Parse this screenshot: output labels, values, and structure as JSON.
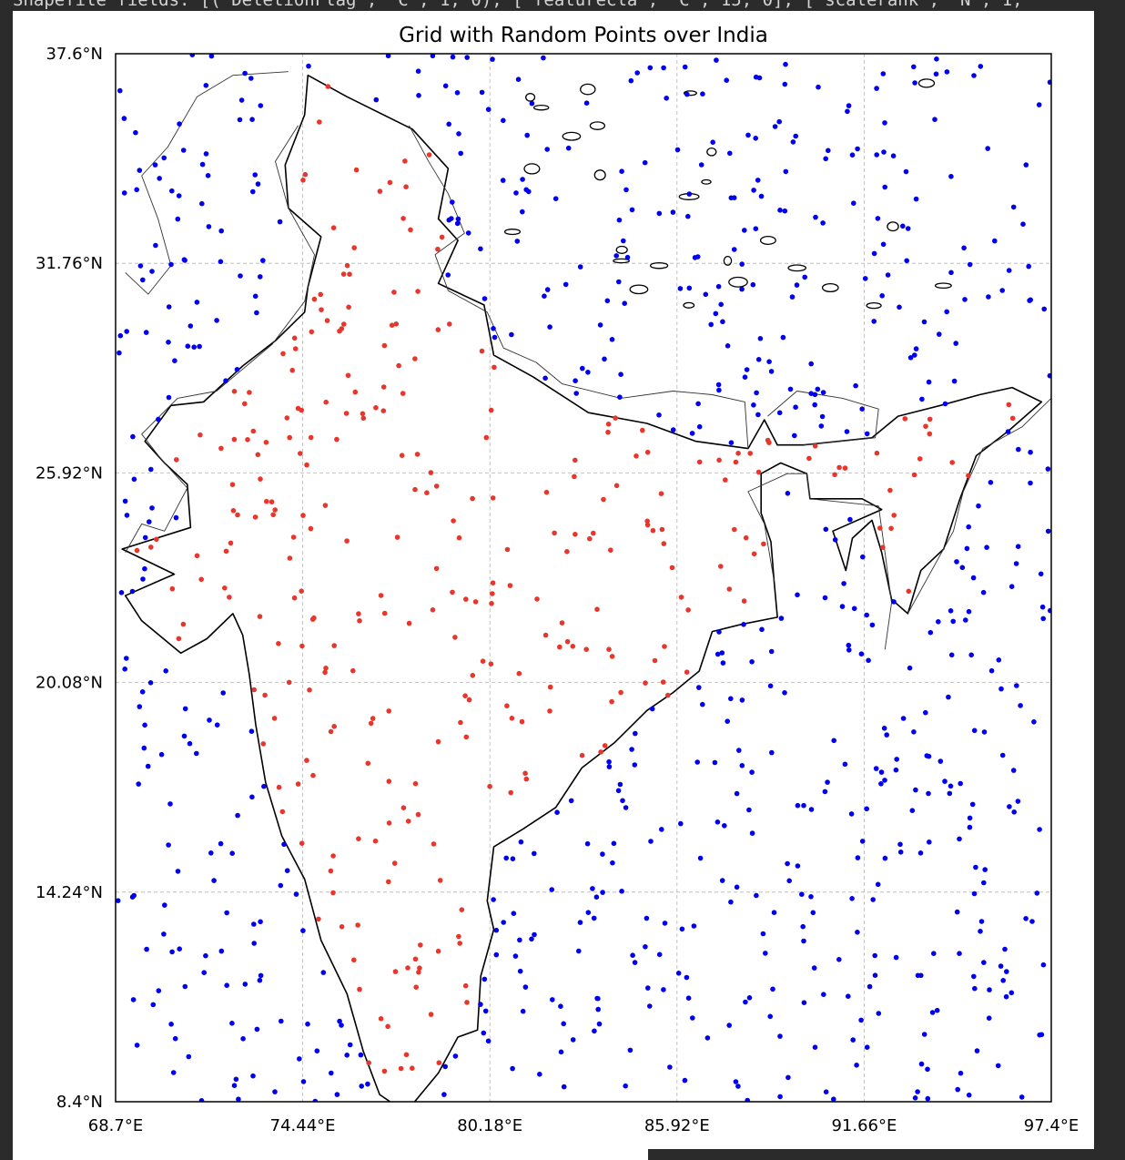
{
  "output_text": "Shapefile fields: [('DeletionFlag', 'C', 1, 0), ['featurecla', 'C', 15, 0], ['scalerank', 'N', 1,",
  "chart_data": {
    "type": "scatter",
    "title": "Grid with Random Points over India",
    "xlim": [
      68.7,
      97.4
    ],
    "ylim": [
      8.4,
      37.6
    ],
    "x_ticks": [
      68.7,
      74.44,
      80.18,
      85.92,
      91.66,
      97.4
    ],
    "y_ticks": [
      8.4,
      14.24,
      20.08,
      25.92,
      31.76,
      37.6
    ],
    "x_tick_labels": [
      "68.7°E",
      "74.44°E",
      "80.18°E",
      "85.92°E",
      "91.66°E",
      "97.4°E"
    ],
    "y_tick_labels": [
      "8.4°N",
      "14.24°N",
      "20.08°N",
      "25.92°N",
      "31.76°N",
      "37.6°N"
    ],
    "grid": true,
    "point_count_approx": 1000,
    "series_colors": {
      "inside_india": "#e8362c",
      "outside_india": "#0000ee"
    },
    "coastline_color": "#000000",
    "border_color": "#333333"
  }
}
